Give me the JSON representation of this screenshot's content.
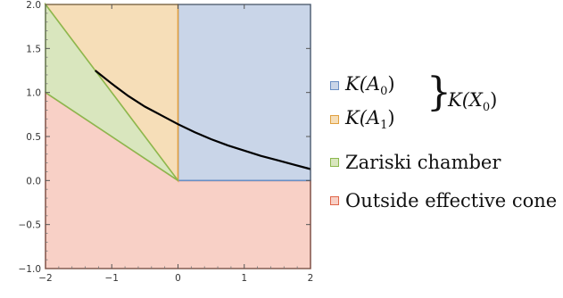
{
  "chart_data": {
    "type": "area",
    "title": "",
    "xlabel": "",
    "ylabel": "",
    "xlim": [
      -2,
      2
    ],
    "ylim": [
      -1,
      2
    ],
    "xticks": [
      -2,
      -1,
      0,
      1,
      2
    ],
    "yticks": [
      -1.0,
      -0.5,
      0.0,
      0.5,
      1.0,
      1.5,
      2.0
    ],
    "xtick_labels": [
      "−2",
      "−1",
      "0",
      "1",
      "2"
    ],
    "ytick_labels": [
      "−1.0",
      "−0.5",
      "0.0",
      "0.5",
      "1.0",
      "1.5",
      "2.0"
    ],
    "grid": false,
    "legend_position": "right",
    "regions": [
      {
        "name": "K(A0)",
        "fill": "#c9d5e8",
        "stroke": "#6a8fc4",
        "polygon": [
          [
            0,
            0
          ],
          [
            2,
            0
          ],
          [
            2,
            2
          ],
          [
            0,
            2
          ]
        ]
      },
      {
        "name": "K(A1)",
        "fill": "#f6deb8",
        "stroke": "#e0a040",
        "polygon": [
          [
            -2,
            2
          ],
          [
            0,
            2
          ],
          [
            0,
            0
          ]
        ]
      },
      {
        "name": "Zariski chamber",
        "fill": "#d9e6be",
        "stroke": "#8cb84e",
        "polygon": [
          [
            -2,
            1
          ],
          [
            -2,
            2
          ],
          [
            0,
            0
          ]
        ]
      },
      {
        "name": "Outside effective cone",
        "fill": "#f8d0c6",
        "stroke": "#e0664a",
        "polygon": [
          [
            -2,
            -1
          ],
          [
            -2,
            1
          ],
          [
            0,
            0
          ],
          [
            2,
            0
          ],
          [
            2,
            -1
          ]
        ]
      }
    ],
    "curve": {
      "color": "#000000",
      "points": [
        [
          -1.25,
          1.25
        ],
        [
          -1.0,
          1.1
        ],
        [
          -0.75,
          0.96
        ],
        [
          -0.5,
          0.84
        ],
        [
          -0.25,
          0.74
        ],
        [
          0,
          0.64
        ],
        [
          0.25,
          0.55
        ],
        [
          0.5,
          0.47
        ],
        [
          0.75,
          0.4
        ],
        [
          1.0,
          0.34
        ],
        [
          1.25,
          0.28
        ],
        [
          1.5,
          0.23
        ],
        [
          1.75,
          0.18
        ],
        [
          2.0,
          0.13
        ]
      ]
    }
  },
  "legend": {
    "items": [
      {
        "label_prefix": "K(",
        "label_sub_base": "A",
        "label_sub": "0",
        "label_suffix": ")",
        "fill": "#c9d5e8",
        "stroke": "#6a8fc4"
      },
      {
        "label_prefix": "K(",
        "label_sub_base": "A",
        "label_sub": "1",
        "label_suffix": ")",
        "fill": "#f6deb8",
        "stroke": "#e0a040"
      },
      {
        "label": "Zariski chamber",
        "fill": "#d9e6be",
        "stroke": "#8cb84e"
      },
      {
        "label": "Outside effective cone",
        "fill": "#f8d0c6",
        "stroke": "#e0664a"
      }
    ],
    "brace_label_prefix": "K(",
    "brace_label_base": "X",
    "brace_label_sub": "0",
    "brace_label_suffix": ")"
  }
}
